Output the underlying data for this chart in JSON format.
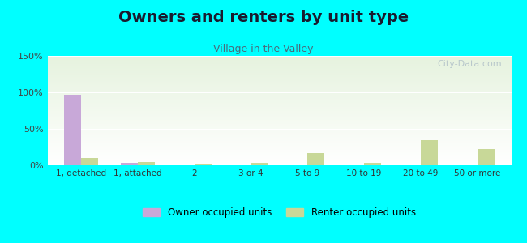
{
  "title": "Owners and renters by unit type",
  "subtitle": "Village in the Valley",
  "categories": [
    "1, detached",
    "1, attached",
    "2",
    "3 or 4",
    "5 to 9",
    "10 to 19",
    "20 to 49",
    "50 or more"
  ],
  "owner_values": [
    97,
    3,
    0,
    0,
    0,
    0,
    0,
    0
  ],
  "renter_values": [
    10,
    4,
    2,
    3,
    17,
    3,
    35,
    22
  ],
  "owner_color": "#c8a8d8",
  "renter_color": "#c8d898",
  "ylim": [
    0,
    150
  ],
  "yticks": [
    0,
    50,
    100,
    150
  ],
  "ytick_labels": [
    "0%",
    "50%",
    "100%",
    "150%"
  ],
  "background_color": "#00ffff",
  "title_fontsize": 14,
  "subtitle_fontsize": 9,
  "bar_width": 0.3,
  "watermark_text": "City-Data.com"
}
